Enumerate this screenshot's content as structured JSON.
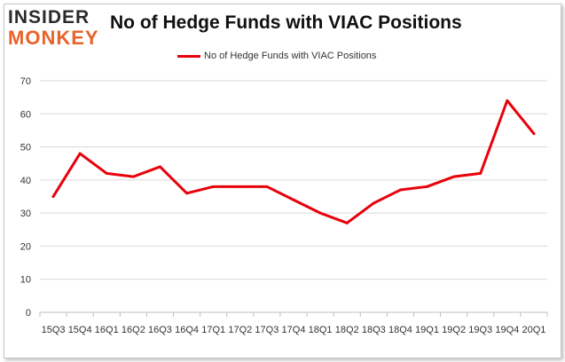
{
  "logo": {
    "top": "INSIDER",
    "bottom": "MONKEY"
  },
  "chart_data": {
    "type": "line",
    "title": "No of Hedge Funds with VIAC Positions",
    "xlabel": "",
    "ylabel": "",
    "categories": [
      "15Q3",
      "15Q4",
      "16Q1",
      "16Q2",
      "16Q3",
      "16Q4",
      "17Q1",
      "17Q2",
      "17Q3",
      "17Q4",
      "18Q1",
      "18Q2",
      "18Q3",
      "18Q4",
      "19Q1",
      "19Q2",
      "19Q3",
      "19Q4",
      "20Q1"
    ],
    "series": [
      {
        "name": "No of Hedge Funds with VIAC Positions",
        "values": [
          35,
          48,
          42,
          41,
          44,
          36,
          38,
          38,
          38,
          34,
          30,
          27,
          33,
          37,
          38,
          41,
          42,
          64,
          54
        ],
        "color": "#e8000b"
      }
    ],
    "ylim": [
      0,
      70
    ],
    "yticks": [
      0,
      10,
      20,
      30,
      40,
      50,
      60,
      70
    ],
    "grid": true,
    "legend_position": "top-center"
  }
}
